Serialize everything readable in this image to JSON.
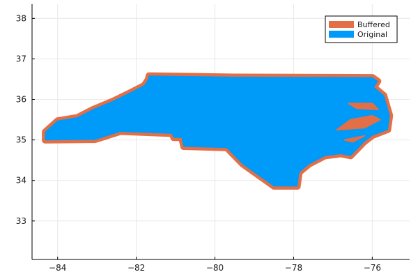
{
  "chart_data": {
    "type": "map",
    "title": "",
    "xlabel": "",
    "ylabel": "",
    "xlim": [
      -84.65,
      -75.05
    ],
    "ylim": [
      32.05,
      38.35
    ],
    "x_ticks": [
      -84,
      -82,
      -80,
      -78,
      -76
    ],
    "x_tick_labels": [
      "−84",
      "−82",
      "−80",
      "−78",
      "−76"
    ],
    "y_ticks": [
      33,
      34,
      35,
      36,
      37,
      38
    ],
    "y_tick_labels": [
      "33",
      "34",
      "35",
      "36",
      "37",
      "38"
    ],
    "grid": true,
    "legend_position": "top-right",
    "series": [
      {
        "name": "Buffered",
        "color": "#e26f46"
      },
      {
        "name": "Original",
        "color": "#009af9"
      }
    ],
    "outline": [
      [
        -81.68,
        36.59
      ],
      [
        -79.5,
        36.56
      ],
      [
        -76.0,
        36.55
      ],
      [
        -75.85,
        36.45
      ],
      [
        -75.95,
        36.3
      ],
      [
        -75.7,
        36.1
      ],
      [
        -75.55,
        35.6
      ],
      [
        -75.6,
        35.25
      ],
      [
        -76.0,
        35.1
      ],
      [
        -76.2,
        34.95
      ],
      [
        -76.55,
        34.6
      ],
      [
        -76.8,
        34.65
      ],
      [
        -77.2,
        34.6
      ],
      [
        -77.6,
        34.4
      ],
      [
        -77.85,
        34.2
      ],
      [
        -77.9,
        33.85
      ],
      [
        -78.5,
        33.85
      ],
      [
        -79.3,
        34.4
      ],
      [
        -79.7,
        34.8
      ],
      [
        -80.8,
        34.83
      ],
      [
        -80.85,
        35.05
      ],
      [
        -81.05,
        35.05
      ],
      [
        -81.1,
        35.15
      ],
      [
        -82.4,
        35.2
      ],
      [
        -83.05,
        35.0
      ],
      [
        -84.32,
        34.99
      ],
      [
        -84.32,
        35.2
      ],
      [
        -84.0,
        35.48
      ],
      [
        -83.5,
        35.56
      ],
      [
        -83.1,
        35.76
      ],
      [
        -82.6,
        35.96
      ],
      [
        -82.2,
        36.15
      ],
      [
        -81.8,
        36.35
      ],
      [
        -81.7,
        36.5
      ]
    ],
    "sound_inlets": [
      [
        [
          -76.6,
          35.9
        ],
        [
          -76.0,
          35.9
        ],
        [
          -75.85,
          35.75
        ],
        [
          -76.4,
          35.78
        ]
      ],
      [
        [
          -76.9,
          35.25
        ],
        [
          -76.2,
          35.3
        ],
        [
          -75.8,
          35.5
        ],
        [
          -76.0,
          35.6
        ],
        [
          -76.55,
          35.5
        ]
      ],
      [
        [
          -76.7,
          35.0
        ],
        [
          -76.2,
          35.1
        ],
        [
          -76.5,
          34.95
        ]
      ]
    ]
  }
}
